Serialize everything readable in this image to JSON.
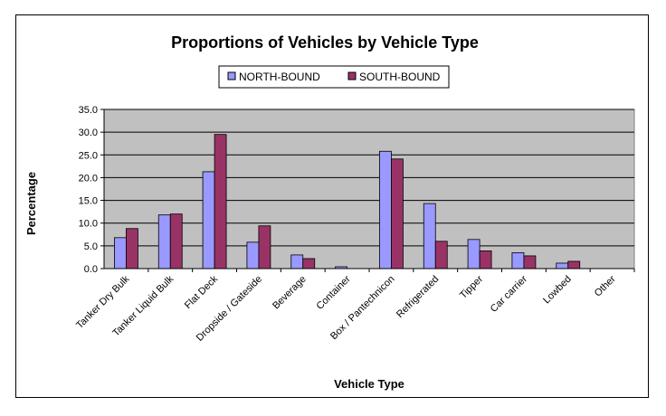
{
  "chart_data": {
    "type": "bar",
    "title": "Proportions of Vehicles by Vehicle Type",
    "xlabel": "Vehicle Type",
    "ylabel": "Percentage",
    "categories": [
      "Tanker Dry Bulk",
      "Tanker Liquid Bulk",
      "Flat Deck",
      "Dropside / Gateside",
      "Beverage",
      "Container",
      "Box / Pantechnicon",
      "Refrigerated",
      "Tipper",
      "Car carrier",
      "Lowbed",
      "Other"
    ],
    "series": [
      {
        "name": "NORTH-BOUND",
        "color": "#9999ff",
        "values": [
          6.8,
          11.8,
          21.3,
          5.8,
          3.0,
          0.4,
          25.8,
          14.3,
          6.4,
          3.5,
          1.2,
          0.0
        ]
      },
      {
        "name": "SOUTH-BOUND",
        "color": "#993366",
        "values": [
          8.8,
          12.0,
          29.5,
          9.4,
          2.2,
          0.0,
          24.1,
          6.0,
          3.9,
          2.8,
          1.6,
          0.0
        ]
      }
    ],
    "ylim": [
      0,
      35
    ],
    "yticks": [
      "0.0",
      "5.0",
      "10.0",
      "15.0",
      "20.0",
      "25.0",
      "30.0",
      "35.0"
    ],
    "grid": true,
    "plot_background": "#c0c0c0",
    "legend_position": "top"
  }
}
